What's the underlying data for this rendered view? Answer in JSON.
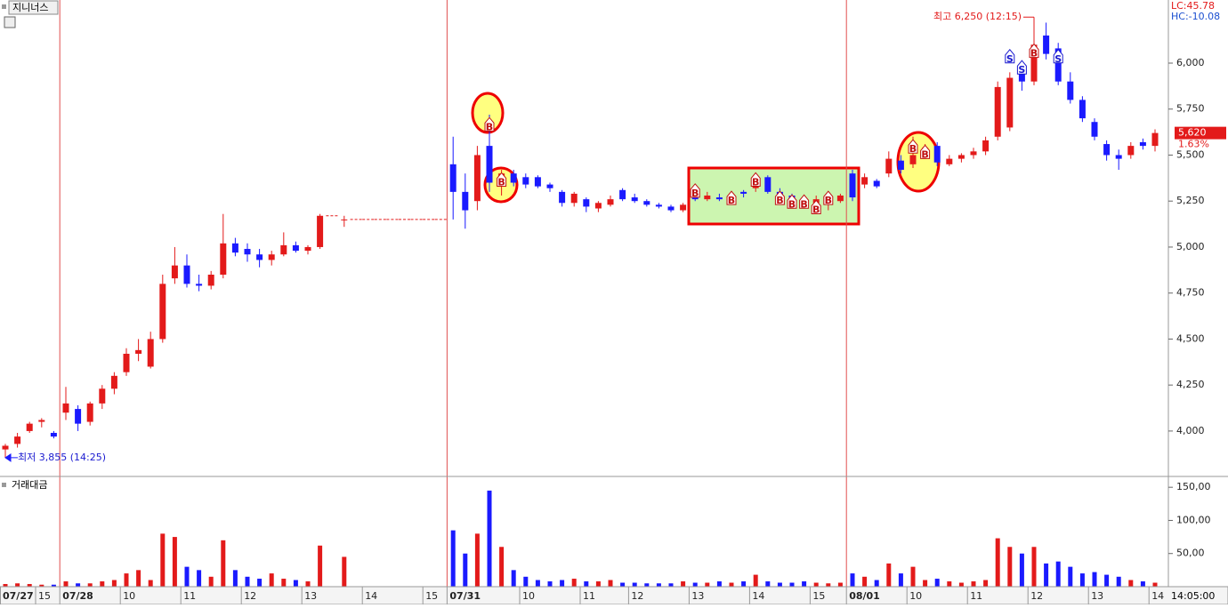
{
  "chart_data": {
    "type": "candlestick",
    "title": "지니너스",
    "indicators": [
      {
        "text": "LC:45.78",
        "color": "#e31a1a"
      },
      {
        "text": "HC:-10.08",
        "color": "#1a4fd0"
      }
    ],
    "up_color": "#e31a1a",
    "down_color": "#1a1aff",
    "categories": [
      "07/27",
      null,
      null,
      "15",
      null,
      "07/28",
      null,
      null,
      null,
      null,
      "10",
      null,
      null,
      null,
      null,
      "11",
      null,
      null,
      null,
      null,
      "12",
      null,
      null,
      null,
      null,
      "13",
      null,
      null,
      null,
      null,
      "14",
      null,
      null,
      null,
      null,
      "15",
      null,
      "07/31",
      null,
      null,
      null,
      null,
      null,
      "10",
      null,
      null,
      null,
      null,
      "11",
      null,
      null,
      null,
      "12",
      null,
      null,
      null,
      null,
      "13",
      null,
      null,
      null,
      null,
      "14",
      null,
      null,
      null,
      null,
      "15",
      null,
      null,
      "08/01",
      null,
      null,
      null,
      null,
      "10",
      null,
      null,
      null,
      null,
      "11",
      null,
      null,
      null,
      null,
      "12",
      null,
      null,
      null,
      null,
      "13",
      null,
      null,
      null,
      null,
      "14"
    ],
    "open": [
      3900,
      3930,
      4000,
      4050,
      3990,
      4100,
      4120,
      4050,
      4150,
      4230,
      4320,
      4420,
      4350,
      4500,
      4830,
      4900,
      4800,
      4790,
      4850,
      5020,
      4990,
      4960,
      4930,
      4960,
      5010,
      4980,
      5000,
      null,
      5150,
      null,
      null,
      null,
      null,
      null,
      null,
      null,
      null,
      5450,
      5300,
      5250,
      5550,
      5350,
      5400,
      5380,
      5380,
      5340,
      5300,
      5240,
      5260,
      5210,
      5230,
      5310,
      5270,
      5250,
      5230,
      5220,
      5200,
      5270,
      5260,
      5270,
      5260,
      5300,
      5320,
      5380,
      5300,
      5280,
      5260,
      5240,
      5230,
      5250,
      5400,
      5340,
      5360,
      5400,
      5470,
      5450,
      5500,
      5550,
      5450,
      5480,
      5500,
      5520,
      5600,
      5650,
      5950,
      5900,
      6150,
      6080,
      5900,
      5800,
      5680,
      5560,
      5500,
      5500,
      5570,
      5550
    ],
    "high": [
      3930,
      3990,
      4050,
      4070,
      4000,
      4240,
      4140,
      4160,
      4250,
      4320,
      4450,
      4500,
      4540,
      4850,
      5000,
      4960,
      4850,
      4870,
      5180,
      5050,
      5020,
      4990,
      4980,
      5080,
      5030,
      5010,
      5180,
      null,
      5170,
      null,
      null,
      null,
      null,
      null,
      null,
      null,
      null,
      5600,
      5400,
      5550,
      5720,
      5420,
      5420,
      5400,
      5390,
      5350,
      5310,
      5300,
      5270,
      5250,
      5280,
      5320,
      5290,
      5260,
      5240,
      5230,
      5240,
      5310,
      5300,
      5290,
      5290,
      5310,
      5400,
      5390,
      5320,
      5290,
      5280,
      5280,
      5270,
      5290,
      5420,
      5400,
      5370,
      5520,
      5500,
      5600,
      5560,
      5570,
      5500,
      5510,
      5540,
      5600,
      5900,
      5950,
      5980,
      6250,
      6220,
      6110,
      5950,
      5820,
      5700,
      5580,
      5530,
      5570,
      5590,
      5640
    ],
    "low": [
      3855,
      3910,
      3990,
      4020,
      3960,
      4060,
      4000,
      4030,
      4120,
      4200,
      4300,
      4380,
      4340,
      4480,
      4800,
      4780,
      4760,
      4770,
      4830,
      4950,
      4920,
      4890,
      4900,
      4950,
      4970,
      4960,
      4990,
      null,
      5110,
      null,
      null,
      null,
      null,
      null,
      null,
      null,
      null,
      5150,
      5100,
      5200,
      5300,
      5280,
      5330,
      5320,
      5320,
      5300,
      5220,
      5220,
      5190,
      5190,
      5220,
      5250,
      5240,
      5220,
      5210,
      5190,
      5190,
      5250,
      5250,
      5250,
      5240,
      5270,
      5300,
      5290,
      5270,
      5240,
      5230,
      5200,
      5200,
      5240,
      5250,
      5320,
      5320,
      5380,
      5400,
      5430,
      5480,
      5440,
      5440,
      5460,
      5480,
      5500,
      5580,
      5630,
      5850,
      5880,
      6020,
      5880,
      5780,
      5680,
      5580,
      5470,
      5420,
      5480,
      5530,
      5520
    ],
    "close": [
      3920,
      3970,
      4040,
      4060,
      3970,
      4150,
      4040,
      4150,
      4230,
      4300,
      4420,
      4440,
      4500,
      4800,
      4900,
      4800,
      4790,
      4850,
      5020,
      4970,
      4960,
      4930,
      4960,
      5010,
      4980,
      5000,
      5170,
      null,
      5150,
      null,
      null,
      null,
      null,
      null,
      null,
      null,
      null,
      5300,
      5200,
      5500,
      5350,
      5400,
      5350,
      5340,
      5330,
      5320,
      5240,
      5290,
      5220,
      5240,
      5260,
      5260,
      5250,
      5230,
      5220,
      5200,
      5230,
      5260,
      5280,
      5260,
      5280,
      5290,
      5380,
      5300,
      5280,
      5250,
      5240,
      5260,
      5250,
      5280,
      5270,
      5380,
      5330,
      5480,
      5420,
      5500,
      5540,
      5460,
      5480,
      5500,
      5520,
      5580,
      5870,
      5920,
      5900,
      6100,
      6050,
      5900,
      5800,
      5700,
      5600,
      5500,
      5480,
      5550,
      5550,
      5620
    ],
    "ylim": [
      3758,
      6343
    ],
    "yticks": [
      {
        "value": 4000,
        "label": "4,000"
      },
      {
        "value": 4250,
        "label": "4,250"
      },
      {
        "value": 4500,
        "label": "4,500"
      },
      {
        "value": 4750,
        "label": "4,750"
      },
      {
        "value": 5000,
        "label": "5,000"
      },
      {
        "value": 5250,
        "label": "5,250"
      },
      {
        "value": 5500,
        "label": "5,500"
      },
      {
        "value": 5750,
        "label": "5,750"
      },
      {
        "value": 6000,
        "label": "6,000"
      }
    ],
    "last_price": {
      "value": 5620,
      "label": "5,620"
    },
    "change": {
      "value": 1.63,
      "label": "1.63%"
    },
    "high_note": "최고 6,250 (12:15)",
    "low_note": "최저 3,855 (14:25)",
    "signals": [
      {
        "index": 40,
        "text": "B",
        "price": 5660
      },
      {
        "index": 41,
        "text": "B",
        "price": 5360
      },
      {
        "index": 57,
        "text": "B",
        "price": 5300
      },
      {
        "index": 60,
        "text": "B",
        "price": 5260
      },
      {
        "index": 62,
        "text": "B",
        "price": 5360
      },
      {
        "index": 64,
        "text": "B",
        "price": 5260
      },
      {
        "index": 65,
        "text": "B",
        "price": 5240
      },
      {
        "index": 66,
        "text": "B",
        "price": 5240
      },
      {
        "index": 67,
        "text": "B",
        "price": 5210
      },
      {
        "index": 68,
        "text": "B",
        "price": 5260
      },
      {
        "index": 75,
        "text": "B",
        "price": 5540
      },
      {
        "index": 76,
        "text": "B",
        "price": 5510
      },
      {
        "index": 83,
        "text": "S",
        "price": 6030
      },
      {
        "index": 84,
        "text": "S",
        "price": 5970
      },
      {
        "index": 85,
        "text": "B",
        "price": 6060
      },
      {
        "index": 87,
        "text": "S",
        "price": 6030
      }
    ],
    "volume": {
      "title": "거래대금",
      "values": [
        4,
        5,
        4,
        3,
        3,
        8,
        5,
        5,
        8,
        10,
        20,
        25,
        10,
        80,
        75,
        30,
        25,
        15,
        70,
        25,
        15,
        12,
        20,
        12,
        10,
        8,
        62,
        null,
        45,
        null,
        null,
        null,
        null,
        null,
        null,
        null,
        null,
        85,
        50,
        80,
        145,
        60,
        25,
        15,
        10,
        8,
        10,
        12,
        8,
        8,
        10,
        6,
        6,
        5,
        5,
        5,
        8,
        6,
        6,
        8,
        6,
        8,
        18,
        8,
        6,
        6,
        8,
        6,
        5,
        6,
        20,
        15,
        10,
        35,
        20,
        30,
        10,
        12,
        8,
        6,
        8,
        10,
        73,
        60,
        50,
        60,
        35,
        38,
        30,
        20,
        22,
        18,
        15,
        10,
        8,
        6
      ],
      "ylim": [
        0,
        165
      ],
      "yticks": [
        {
          "value": 50,
          "label": "50,00"
        },
        {
          "value": 100,
          "label": "100,00"
        },
        {
          "value": 150,
          "label": "150,00"
        }
      ]
    },
    "time_label": "14:05:00"
  }
}
